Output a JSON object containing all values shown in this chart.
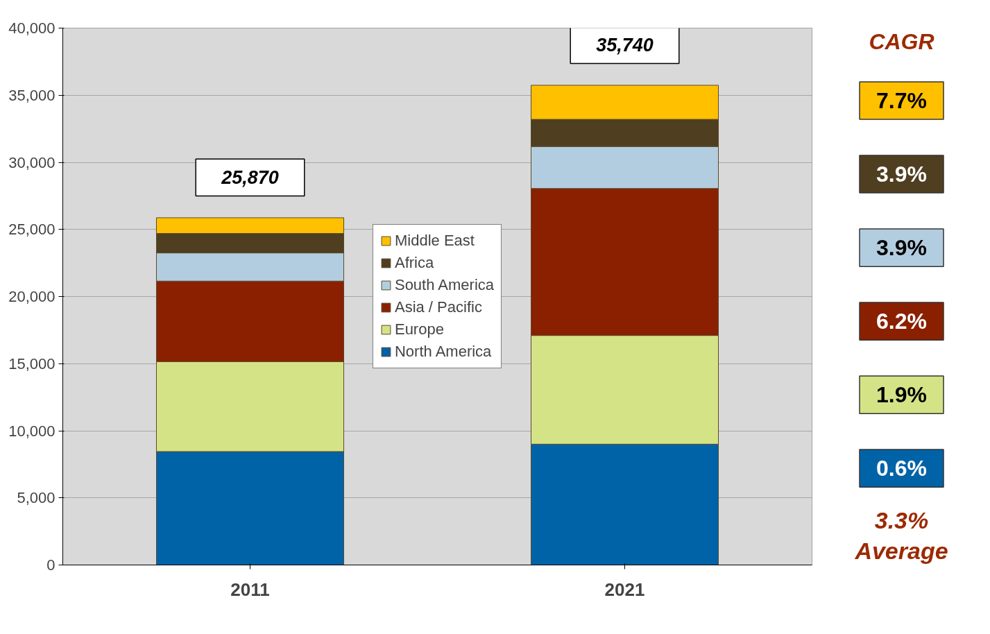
{
  "chart_data": {
    "type": "bar",
    "stacked": true,
    "categories": [
      "2011",
      "2021"
    ],
    "series": [
      {
        "name": "North America",
        "color": "#0063a8",
        "values": [
          8450,
          9000
        ]
      },
      {
        "name": "Europe",
        "color": "#d5e387",
        "values": [
          6700,
          8100
        ]
      },
      {
        "name": "Asia / Pacific",
        "color": "#8b2000",
        "values": [
          6000,
          10950
        ]
      },
      {
        "name": "South America",
        "color": "#b3cde0",
        "values": [
          2100,
          3130
        ]
      },
      {
        "name": "Africa",
        "color": "#4f3f20",
        "values": [
          1450,
          2020
        ]
      },
      {
        "name": "Middle East",
        "color": "#ffc000",
        "values": [
          1170,
          2540
        ]
      }
    ],
    "totals": [
      "25,870",
      "35,740"
    ],
    "ylim": [
      0,
      40000
    ],
    "yticks": [
      {
        "value": 0,
        "label": "0"
      },
      {
        "value": 5000,
        "label": "5,000"
      },
      {
        "value": 10000,
        "label": "10,000"
      },
      {
        "value": 15000,
        "label": "15,000"
      },
      {
        "value": 20000,
        "label": "20,000"
      },
      {
        "value": 25000,
        "label": "25,000"
      },
      {
        "value": 30000,
        "label": "30,000"
      },
      {
        "value": 35000,
        "label": "35,000"
      },
      {
        "value": 40000,
        "label": "40,000"
      }
    ],
    "grid": "y",
    "legend": "center",
    "annotations": [
      "CAGR",
      "7.7%",
      "3.9%",
      "3.9%",
      "6.2%",
      "1.9%",
      "0.6%",
      "3.3%\nAverage"
    ]
  }
}
